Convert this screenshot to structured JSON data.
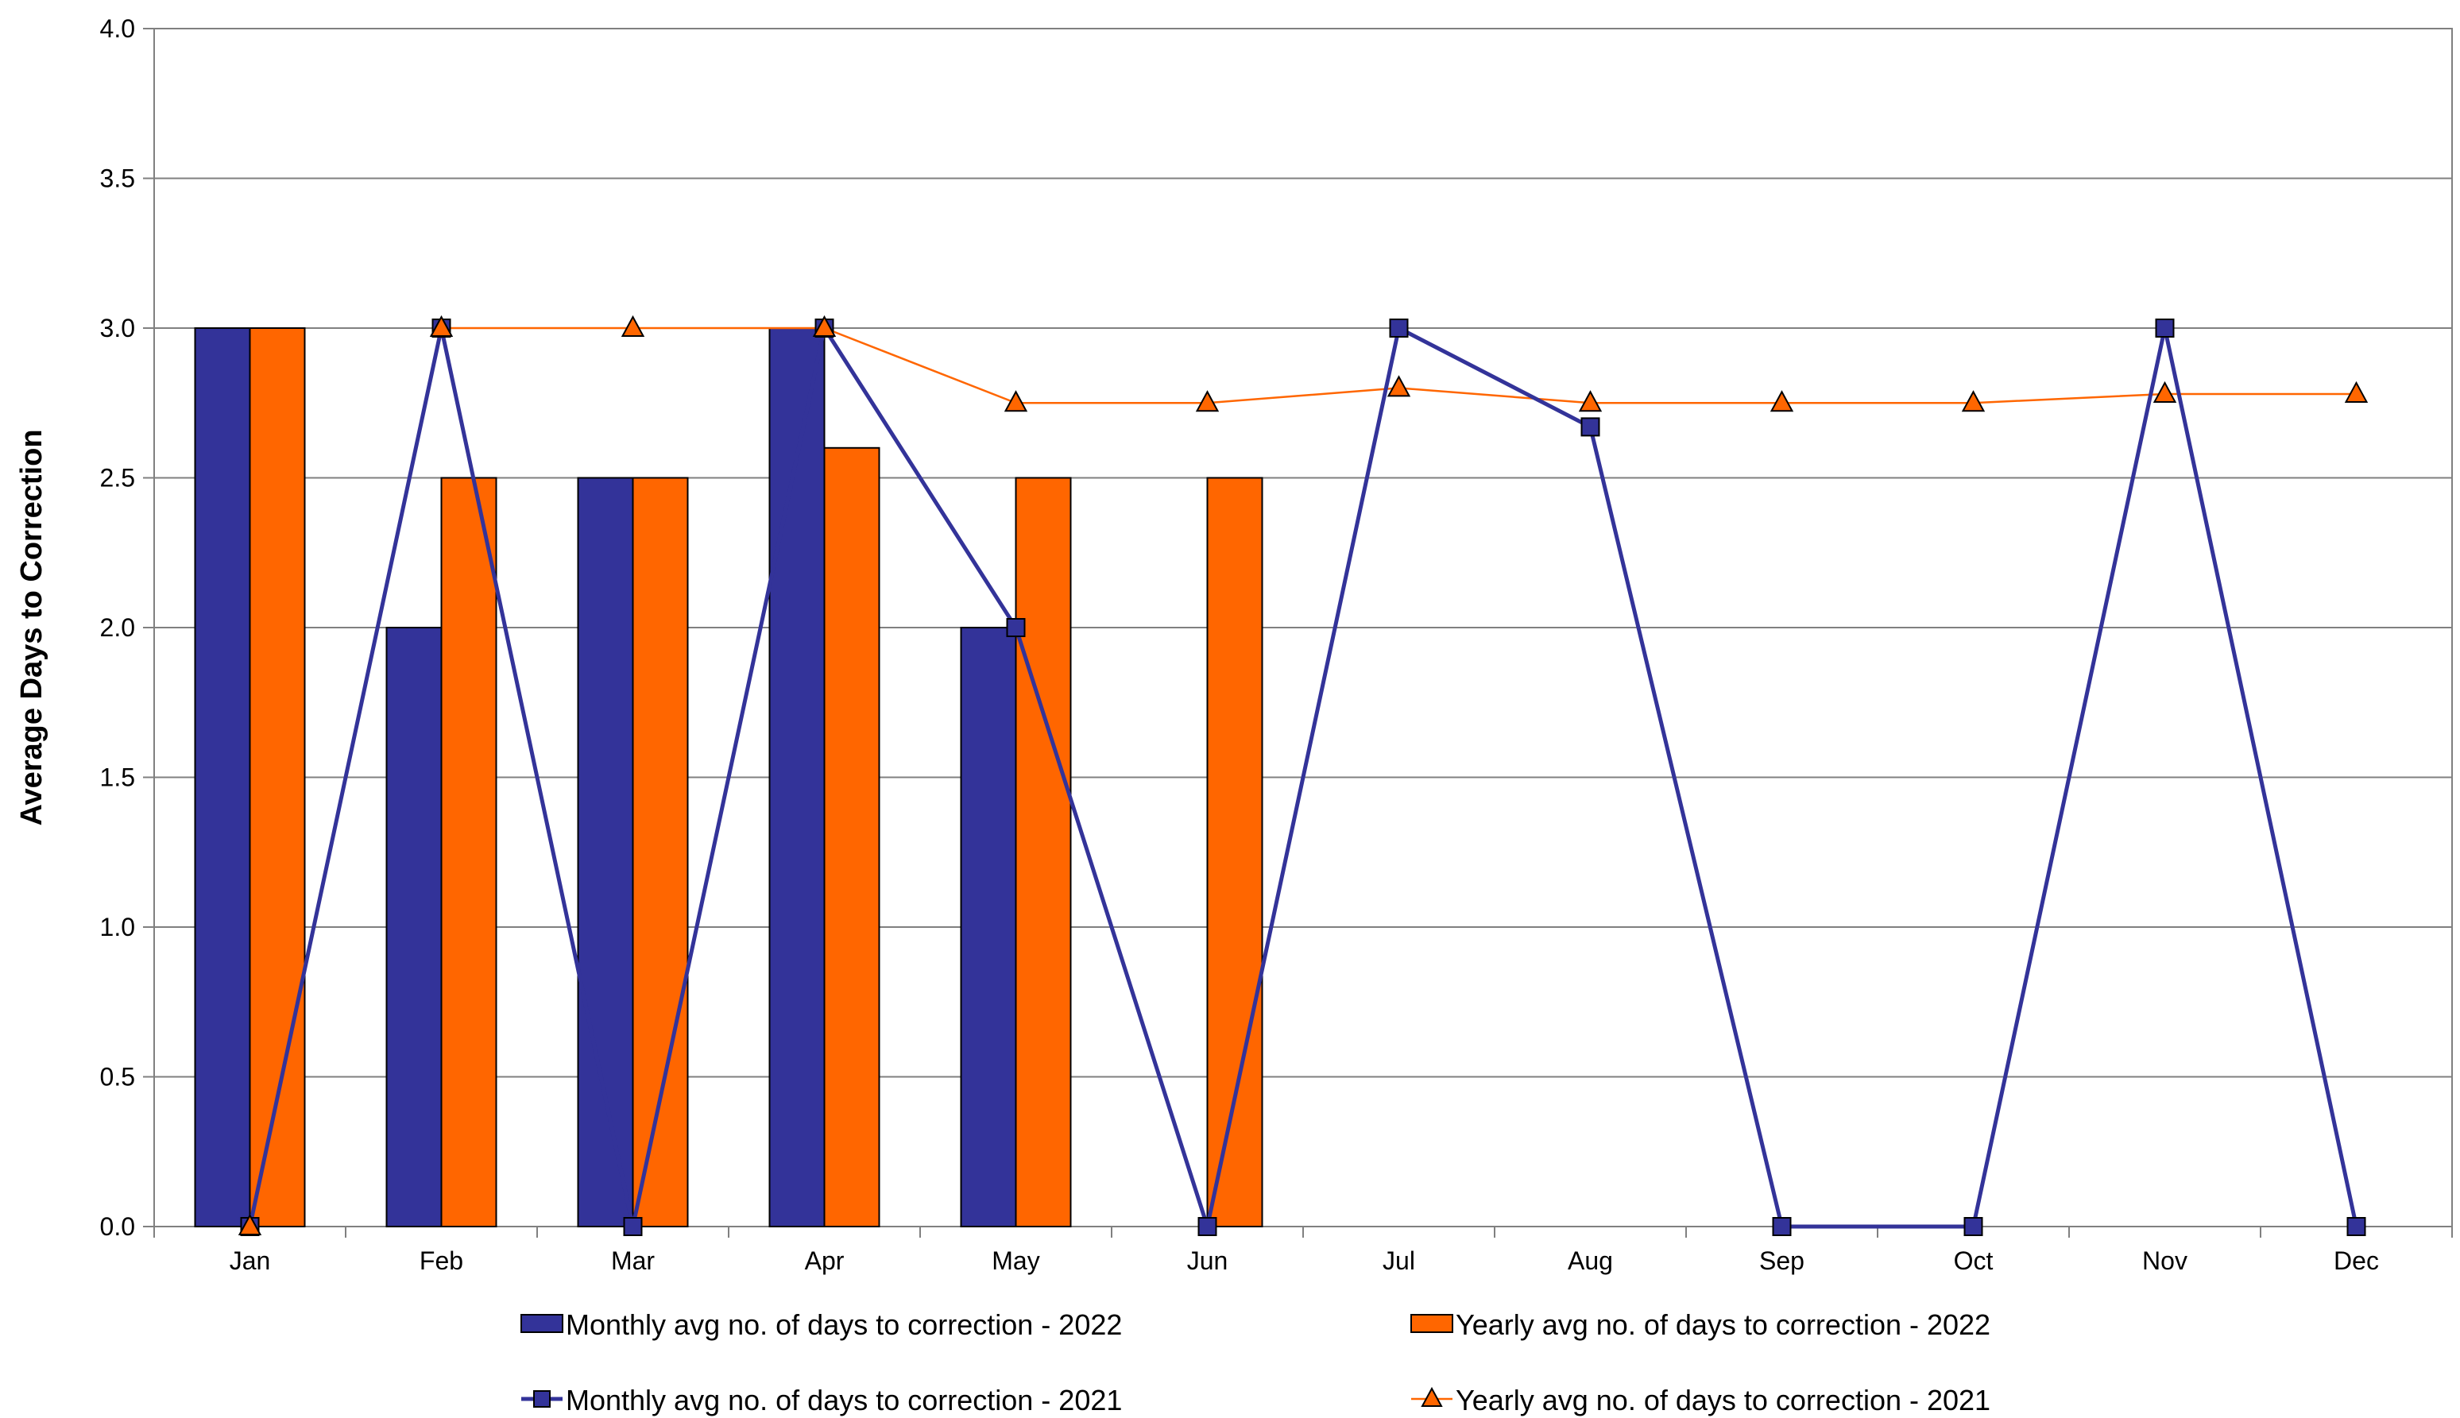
{
  "chart_data": {
    "type": "bar",
    "categories": [
      "Jan",
      "Feb",
      "Mar",
      "Apr",
      "May",
      "Jun",
      "Jul",
      "Aug",
      "Sep",
      "Oct",
      "Nov",
      "Dec"
    ],
    "ylabel": "Average Days to Correction",
    "xlabel": "",
    "ylim": [
      0,
      4
    ],
    "yticks": [
      "0.0",
      "0.5",
      "1.0",
      "1.5",
      "2.0",
      "2.5",
      "3.0",
      "3.5",
      "4.0"
    ],
    "grid": true,
    "legend_position": "bottom",
    "series": [
      {
        "name": "Monthly avg no. of days to correction - 2022",
        "kind": "bar",
        "color": "#333399",
        "values": [
          3.0,
          2.0,
          2.5,
          3.0,
          2.0,
          null,
          null,
          null,
          null,
          null,
          null,
          null
        ]
      },
      {
        "name": "Yearly avg no. of days to correction - 2022",
        "kind": "bar",
        "color": "#FF6600",
        "values": [
          3.0,
          2.5,
          2.5,
          2.6,
          2.5,
          2.5,
          null,
          null,
          null,
          null,
          null,
          null
        ]
      },
      {
        "name": "Monthly avg no. of days to correction - 2021",
        "kind": "line",
        "marker": "square",
        "color": "#333399",
        "values": [
          0.0,
          3.0,
          0.0,
          3.0,
          2.0,
          0.0,
          3.0,
          2.67,
          0.0,
          0.0,
          3.0,
          0.0
        ]
      },
      {
        "name": "Yearly avg no. of days to correction - 2021",
        "kind": "line",
        "marker": "triangle",
        "color": "#FF6600",
        "values": [
          0.0,
          3.0,
          3.0,
          3.0,
          2.75,
          2.75,
          2.8,
          2.75,
          2.75,
          2.75,
          2.78,
          2.78
        ]
      }
    ]
  }
}
